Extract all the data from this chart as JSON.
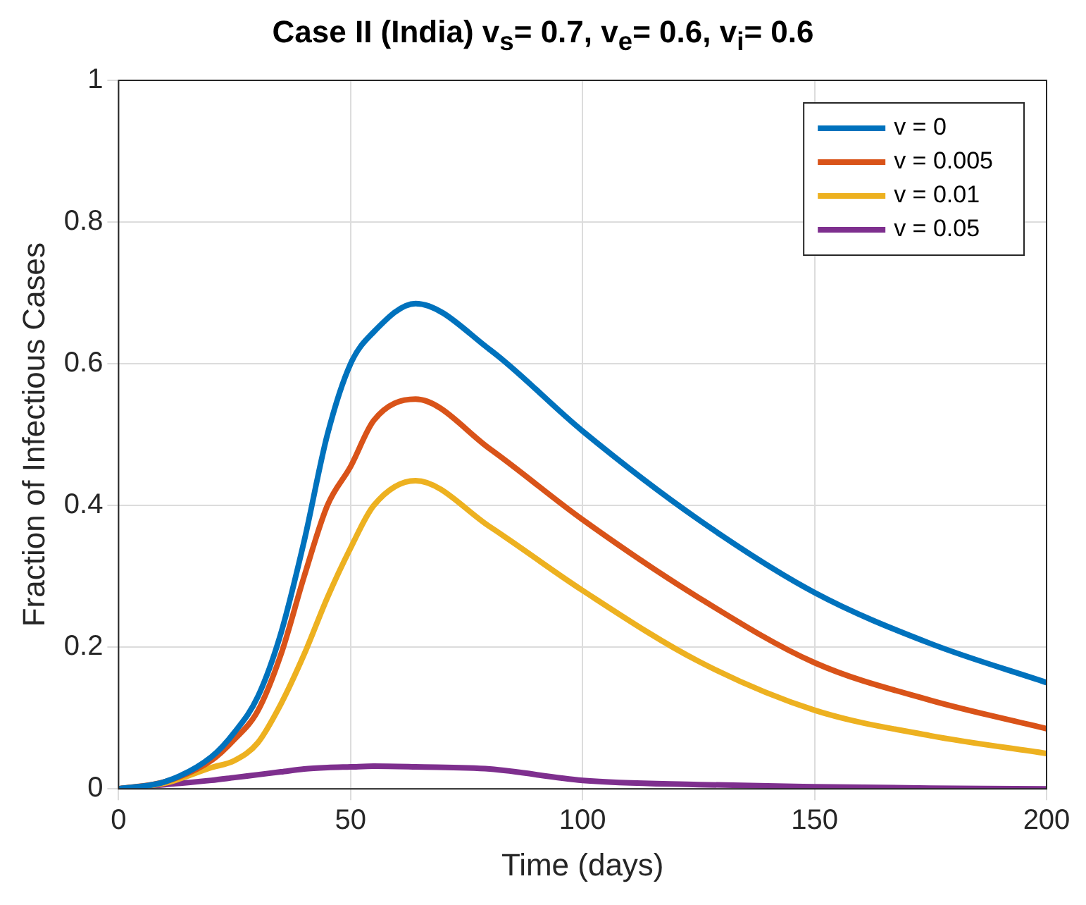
{
  "chart_data": {
    "type": "line",
    "title": "Case II (India) v$_{s}$= 0.7, v$_{e}$= 0.6, v$_{i}$= 0.6",
    "xlabel": "Time (days)",
    "ylabel": "Fraction of Infectious Cases",
    "x": [
      0,
      10,
      20,
      25,
      30,
      35,
      40,
      45,
      50,
      55,
      64,
      80,
      100,
      125,
      150,
      175,
      200
    ],
    "series": [
      {
        "name": "v = 0",
        "color": "#0072bd",
        "values": [
          0,
          0.01,
          0.045,
          0.08,
          0.13,
          0.22,
          0.35,
          0.5,
          0.6,
          0.645,
          0.685,
          0.62,
          0.505,
          0.38,
          0.277,
          0.205,
          0.15
        ]
      },
      {
        "name": "v = 0.005",
        "color": "#d95319",
        "values": [
          0,
          0.01,
          0.04,
          0.07,
          0.11,
          0.19,
          0.3,
          0.4,
          0.455,
          0.52,
          0.55,
          0.48,
          0.38,
          0.27,
          0.178,
          0.125,
          0.085
        ]
      },
      {
        "name": "v = 0.01",
        "color": "#edb120",
        "values": [
          0,
          0.008,
          0.03,
          0.04,
          0.065,
          0.12,
          0.19,
          0.27,
          0.34,
          0.4,
          0.435,
          0.37,
          0.28,
          0.18,
          0.111,
          0.075,
          0.05
        ]
      },
      {
        "name": "v = 0.05",
        "color": "#7e2f8e",
        "values": [
          0,
          0.006,
          0.012,
          0.016,
          0.02,
          0.024,
          0.028,
          0.03,
          0.031,
          0.032,
          0.031,
          0.028,
          0.012,
          0.006,
          0.003,
          0.001,
          0
        ]
      }
    ],
    "xlim": [
      0,
      200
    ],
    "xticks": [
      0,
      50,
      100,
      150,
      200
    ],
    "ylim": [
      0,
      1
    ],
    "yticks": [
      0,
      0.2,
      0.4,
      0.6,
      0.8,
      1
    ],
    "grid": true,
    "legend": "top right",
    "marker": "none",
    "line_style": "solid"
  }
}
